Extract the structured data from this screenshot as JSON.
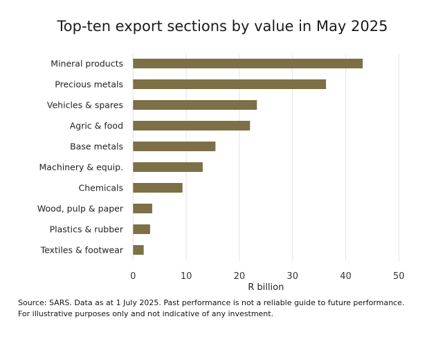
{
  "chart_data": {
    "type": "bar",
    "orientation": "horizontal",
    "title": "Top-ten export sections by value in May 2025",
    "xlabel": "R billion",
    "ylabel": "",
    "categories": [
      "Mineral products",
      "Precious metals",
      "Vehicles & spares",
      "Agric & food",
      "Base metals",
      "Machinery & equip.",
      "Chemicals",
      "Wood, pulp & paper",
      "Plastics & rubber",
      "Textiles & footwear"
    ],
    "values": [
      43.2,
      36.3,
      23.3,
      22.0,
      15.5,
      13.1,
      9.3,
      3.6,
      3.2,
      2.0
    ],
    "xlim": [
      0,
      50
    ],
    "xticks": [
      0,
      10,
      20,
      30,
      40,
      50
    ],
    "grid": "vertical",
    "bar_color": "#7d7046",
    "legend": "none"
  },
  "source": {
    "line1": "Source: SARS. Data as at 1 July 2025. Past performance is not a reliable guide to future performance.",
    "line2": "For illustrative purposes only and not indicative of any investment."
  }
}
